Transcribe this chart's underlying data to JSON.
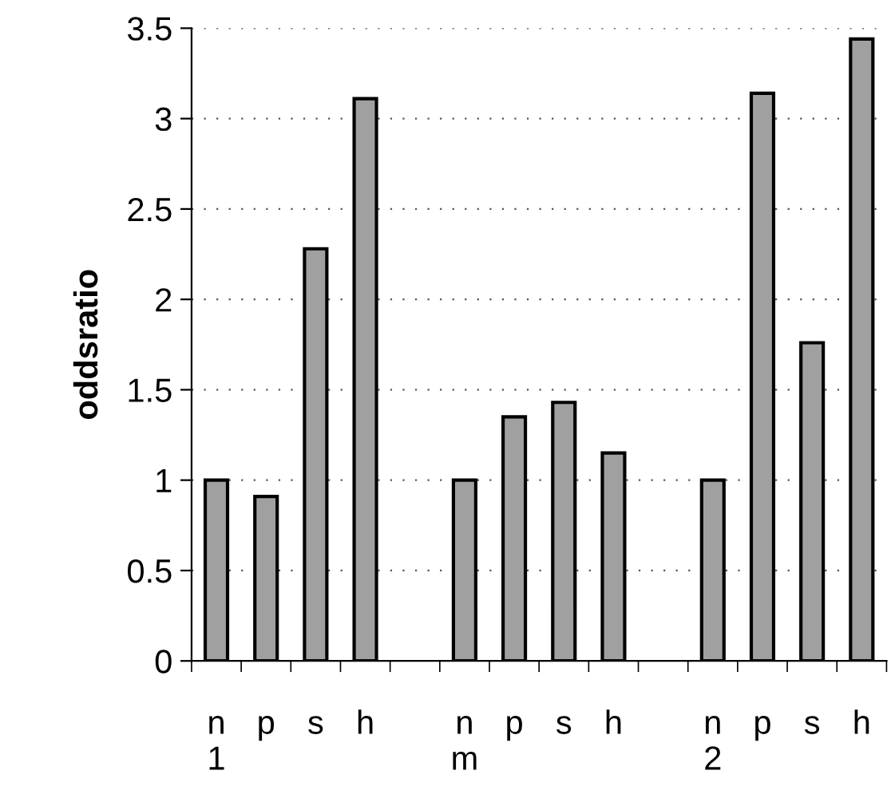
{
  "chart_data": {
    "type": "bar",
    "ylabel": "oddsratio",
    "categories": [
      "n\n1",
      "p",
      "s",
      "h",
      null,
      "n\nm",
      "p",
      "s",
      "h",
      null,
      "n\n2",
      "p",
      "s",
      "h"
    ],
    "values": [
      1.0,
      0.91,
      2.28,
      3.11,
      null,
      1.0,
      1.35,
      1.43,
      1.15,
      null,
      1.0,
      3.14,
      1.76,
      3.44
    ],
    "color": "#a0a0a0",
    "ylim": [
      0,
      3.5
    ],
    "yticks": [
      0,
      0.5,
      1,
      1.5,
      2,
      2.5,
      3,
      3.5
    ],
    "grid": "y"
  }
}
